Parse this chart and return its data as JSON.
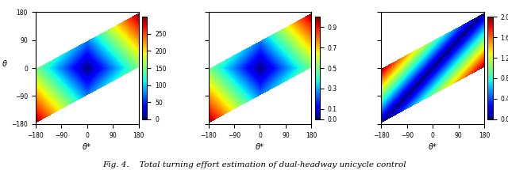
{
  "xlim": [
    -180,
    180
  ],
  "ylim": [
    -180,
    180
  ],
  "xlabel": "θ*",
  "ylabel": "θ",
  "colorbar1_ticks": [
    0,
    50,
    100,
    150,
    200,
    250
  ],
  "colorbar2_ticks": [
    0,
    0.1,
    0.3,
    0.5,
    0.7,
    0.9
  ],
  "colorbar3_ticks": [
    0,
    0.4,
    0.8,
    1.2,
    1.6,
    2.0
  ],
  "caption": "Fig. 4.    Total turning effort estimation of dual-headway unicycle control",
  "figsize": [
    6.4,
    2.15
  ],
  "dpi": 100
}
